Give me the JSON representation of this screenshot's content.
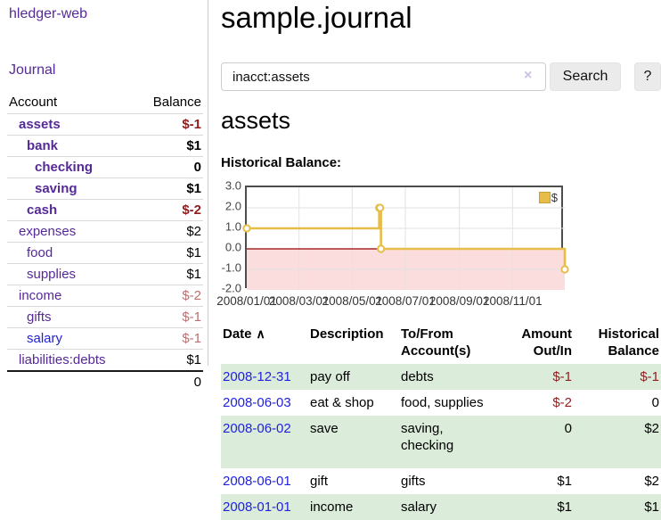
{
  "sidebar": {
    "app_title": "hledger-web",
    "nav": {
      "journal": "Journal"
    },
    "accounts": {
      "headers": {
        "account": "Account",
        "balance": "Balance"
      },
      "rows": [
        {
          "name": "assets",
          "balance": "$-1"
        },
        {
          "name": "bank",
          "balance": "$1"
        },
        {
          "name": "checking",
          "balance": "0"
        },
        {
          "name": "saving",
          "balance": "$1"
        },
        {
          "name": "cash",
          "balance": "$-2"
        },
        {
          "name": "expenses",
          "balance": "$2"
        },
        {
          "name": "food",
          "balance": "$1"
        },
        {
          "name": "supplies",
          "balance": "$1"
        },
        {
          "name": "income",
          "balance": "$-2"
        },
        {
          "name": "gifts",
          "balance": "$-1"
        },
        {
          "name": "salary",
          "balance": "$-1"
        },
        {
          "name": "liabilities:debts",
          "balance": "$1"
        }
      ],
      "total": "0"
    }
  },
  "header": {
    "title": "sample.journal"
  },
  "search": {
    "query": "inacct:assets",
    "clear_icon": "×",
    "search_label": "Search",
    "help_label": "?"
  },
  "main": {
    "account_heading": "assets",
    "chart_title": "Historical Balance:"
  },
  "chart_data": {
    "type": "line",
    "title": "Historical Balance",
    "x_range": [
      "2008-01-01",
      "2008-12-31"
    ],
    "ylim": [
      -2,
      3
    ],
    "yticks": [
      3,
      2,
      1,
      0,
      -1,
      -2
    ],
    "xticks": [
      "2008/01/01",
      "2008/03/01",
      "2008/05/01",
      "2008/07/01",
      "2008/09/01",
      "2008/11/01"
    ],
    "grid": true,
    "grid_color": "#e2e2e2",
    "zero_line_color": "#990000",
    "negative_fill": "#fbdddd",
    "legend_position": "top-right",
    "series": [
      {
        "name": "$",
        "color": "#E7BD4A",
        "step": true,
        "points": [
          [
            "2008-01-01",
            1
          ],
          [
            "2008-06-01",
            2
          ],
          [
            "2008-06-02",
            2
          ],
          [
            "2008-06-03",
            0
          ],
          [
            "2008-12-31",
            -1
          ]
        ]
      }
    ]
  },
  "register": {
    "headers": {
      "date": "Date",
      "sort_icon": "∧",
      "description": "Description",
      "accounts": "To/From Account(s)",
      "amount": "Amount Out/In",
      "balance": "Historical Balance"
    },
    "rows": [
      {
        "date": "2008-12-31",
        "description": "pay off",
        "accounts": "debts",
        "amount": "$-1",
        "balance": "$-1"
      },
      {
        "date": "2008-06-03",
        "description": "eat & shop",
        "accounts": "food, supplies",
        "amount": "$-2",
        "balance": "0"
      },
      {
        "date": "2008-06-02",
        "description": "save",
        "accounts": "saving, checking",
        "amount": "0",
        "balance": "$2"
      },
      {
        "date": "2008-06-01",
        "description": "gift",
        "accounts": "gifts",
        "amount": "$1",
        "balance": "$2"
      },
      {
        "date": "2008-01-01",
        "description": "income",
        "accounts": "salary",
        "amount": "$1",
        "balance": "$1"
      }
    ]
  }
}
